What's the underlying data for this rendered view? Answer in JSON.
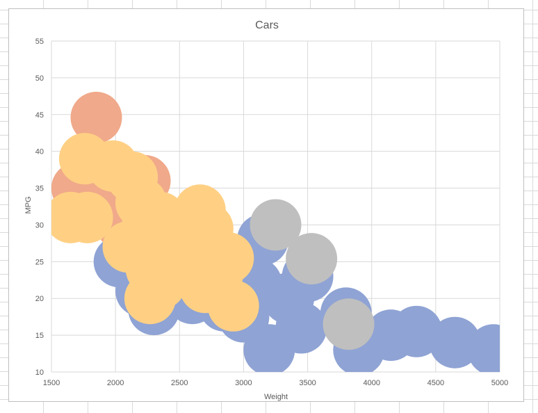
{
  "chart_data": {
    "type": "scatter",
    "title": "Cars",
    "xlabel": "Weight",
    "ylabel": "MPG",
    "xlim": [
      1500,
      5000
    ],
    "ylim": [
      10,
      55
    ],
    "xticks": [
      1500,
      2000,
      2500,
      3000,
      3500,
      4000,
      4500,
      5000
    ],
    "yticks": [
      10,
      15,
      20,
      25,
      30,
      35,
      40,
      45,
      50,
      55
    ],
    "grid": true,
    "series": [
      {
        "color": "#8FA3D4",
        "points": [
          {
            "x": 2030,
            "y": 25.0
          },
          {
            "x": 2200,
            "y": 21.0
          },
          {
            "x": 2300,
            "y": 18.5
          },
          {
            "x": 2600,
            "y": 20.0
          },
          {
            "x": 2500,
            "y": 26.0
          },
          {
            "x": 2850,
            "y": 19.0
          },
          {
            "x": 3000,
            "y": 17.5
          },
          {
            "x": 3100,
            "y": 22.0
          },
          {
            "x": 3150,
            "y": 28.0
          },
          {
            "x": 3200,
            "y": 13.0
          },
          {
            "x": 3350,
            "y": 20.0
          },
          {
            "x": 3450,
            "y": 16.0
          },
          {
            "x": 3500,
            "y": 23.0
          },
          {
            "x": 3800,
            "y": 18.0
          },
          {
            "x": 3900,
            "y": 13.0
          },
          {
            "x": 4150,
            "y": 15.0
          },
          {
            "x": 4350,
            "y": 15.5
          },
          {
            "x": 4650,
            "y": 14.0
          },
          {
            "x": 4950,
            "y": 13.0
          }
        ]
      },
      {
        "color": "#F0A98A",
        "points": [
          {
            "x": 1850,
            "y": 44.6
          },
          {
            "x": 1700,
            "y": 35.0
          },
          {
            "x": 2230,
            "y": 36.0
          },
          {
            "x": 1900,
            "y": 32.0
          },
          {
            "x": 2050,
            "y": 30.0
          }
        ]
      },
      {
        "color": "#BFBFBF",
        "points": [
          {
            "x": 3250,
            "y": 30.0
          },
          {
            "x": 3530,
            "y": 25.4
          },
          {
            "x": 3820,
            "y": 16.5
          }
        ]
      },
      {
        "color": "#FFD084",
        "points": [
          {
            "x": 1760,
            "y": 39.0
          },
          {
            "x": 1980,
            "y": 38.0
          },
          {
            "x": 2130,
            "y": 36.5
          },
          {
            "x": 2200,
            "y": 33.0
          },
          {
            "x": 1650,
            "y": 31.0
          },
          {
            "x": 1780,
            "y": 31.0
          },
          {
            "x": 2250,
            "y": 30.0
          },
          {
            "x": 2350,
            "y": 31.0
          },
          {
            "x": 2100,
            "y": 27.0
          },
          {
            "x": 2400,
            "y": 27.0
          },
          {
            "x": 2660,
            "y": 32.0
          },
          {
            "x": 2720,
            "y": 29.5
          },
          {
            "x": 2280,
            "y": 24.0
          },
          {
            "x": 2350,
            "y": 22.0
          },
          {
            "x": 2600,
            "y": 25.0
          },
          {
            "x": 2800,
            "y": 23.5
          },
          {
            "x": 2880,
            "y": 25.5
          },
          {
            "x": 2270,
            "y": 20.0
          },
          {
            "x": 2700,
            "y": 21.5
          },
          {
            "x": 2920,
            "y": 19.0
          },
          {
            "x": 2500,
            "y": 28.0
          }
        ]
      }
    ]
  }
}
